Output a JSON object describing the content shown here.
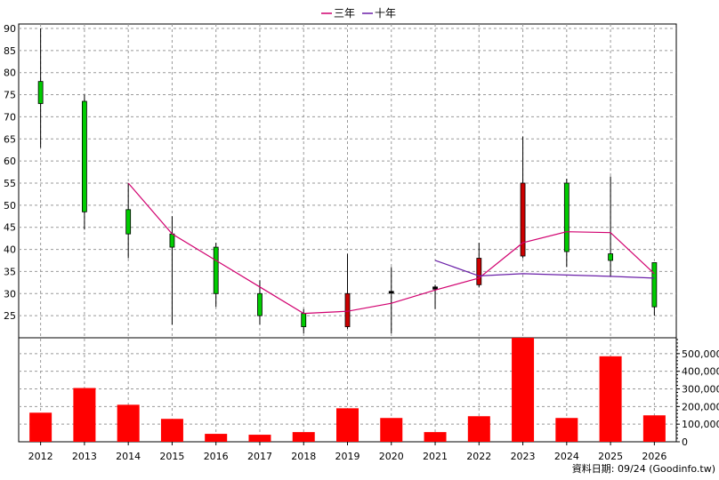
{
  "chart_data": {
    "type": "candlestick-volume",
    "legend": {
      "placement": "top-center",
      "items": [
        {
          "name": "三年",
          "color": "#d1006f"
        },
        {
          "name": "十年",
          "color": "#6a1fa8"
        }
      ]
    },
    "categories": [
      "2012",
      "2013",
      "2014",
      "2015",
      "2016",
      "2017",
      "2018",
      "2019",
      "2020",
      "2021",
      "2022",
      "2023",
      "2024",
      "2025",
      "2026"
    ],
    "price": {
      "ylim": [
        20,
        91
      ],
      "ticks": [
        25,
        30,
        35,
        40,
        45,
        50,
        55,
        60,
        65,
        70,
        75,
        80,
        85,
        90
      ],
      "grid": true,
      "up_color": "#00cc00",
      "down_color": "#cc0000",
      "candles": [
        {
          "open": 73,
          "high": 90,
          "low": 63,
          "close": 78,
          "dir": "up"
        },
        {
          "open": 48.5,
          "high": 75,
          "low": 44.5,
          "close": 73.5,
          "dir": "up"
        },
        {
          "open": 43.5,
          "high": 55,
          "low": 38,
          "close": 49,
          "dir": "up"
        },
        {
          "open": 40.5,
          "high": 47.5,
          "low": 23,
          "close": 43.5,
          "dir": "up"
        },
        {
          "open": 30,
          "high": 41.5,
          "low": 27,
          "close": 40.5,
          "dir": "up"
        },
        {
          "open": 25,
          "high": 33,
          "low": 23,
          "close": 30,
          "dir": "up"
        },
        {
          "open": 22.5,
          "high": 26.5,
          "low": 21,
          "close": 25.5,
          "dir": "up"
        },
        {
          "open": 30,
          "high": 39,
          "low": 22,
          "close": 22.5,
          "dir": "down"
        },
        {
          "open": 30.5,
          "high": 36,
          "low": 21,
          "close": 30.5,
          "dir": "flat"
        },
        {
          "open": 31.5,
          "high": 32,
          "low": 26.5,
          "close": 31,
          "dir": "flat"
        },
        {
          "open": 38,
          "high": 41.5,
          "low": 31.5,
          "close": 32,
          "dir": "down"
        },
        {
          "open": 55,
          "high": 65.5,
          "low": 38,
          "close": 38.5,
          "dir": "down"
        },
        {
          "open": 39.5,
          "high": 56,
          "low": 36,
          "close": 55,
          "dir": "up"
        },
        {
          "open": 37.5,
          "high": 56.5,
          "low": 34,
          "close": 39,
          "dir": "up"
        },
        {
          "open": 27,
          "high": 37,
          "low": 25,
          "close": 37,
          "dir": "up"
        }
      ],
      "series": [
        {
          "name": "三年",
          "color": "#d1006f",
          "values": [
            null,
            null,
            55,
            43.5,
            37.5,
            31.5,
            25.5,
            26,
            27.8,
            30.8,
            33.5,
            41.5,
            44,
            43.8,
            34.5
          ]
        },
        {
          "name": "十年",
          "color": "#6a1fa8",
          "values": [
            null,
            null,
            null,
            null,
            null,
            null,
            null,
            null,
            null,
            37.5,
            34,
            34.5,
            34.2,
            33.9,
            33.5
          ]
        }
      ]
    },
    "volume": {
      "ylim": [
        0,
        590000
      ],
      "ticks": [
        0,
        100000,
        200000,
        300000,
        400000,
        500000
      ],
      "tick_labels": [
        "0",
        "100,000",
        "200,000",
        "300,000",
        "400,000",
        "500,000"
      ],
      "bar_color": "#ff0000",
      "values": [
        165000,
        305000,
        210000,
        130000,
        45000,
        40000,
        55000,
        190000,
        135000,
        55000,
        145000,
        590000,
        135000,
        485000,
        150000
      ]
    },
    "footer": "資料日期: 09/24  (Goodinfo.tw)"
  }
}
